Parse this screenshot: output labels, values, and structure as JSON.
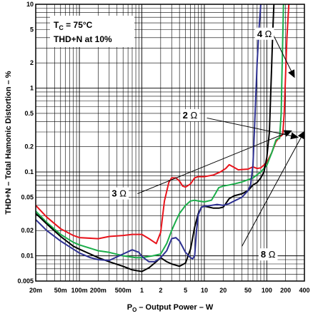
{
  "chart_data": {
    "type": "line",
    "xscale": "log",
    "yscale": "log",
    "xlim": [
      0.02,
      400
    ],
    "ylim": [
      0.005,
      10
    ],
    "grid": true,
    "xlabel": "P",
    "xlabel_sub": "O",
    "xlabel_rest": " – Output Power – W",
    "ylabel": "THD+N – Total Hamonic Distortion – %",
    "annotation_lines": [
      {
        "main": "T",
        "sub": "C",
        "rest": " = 75°C"
      },
      {
        "main": "THD+N at 10%",
        "sub": "",
        "rest": ""
      }
    ],
    "xticks": [
      {
        "v": 0.02,
        "label": "20m"
      },
      {
        "v": 0.05,
        "label": "50m"
      },
      {
        "v": 0.1,
        "label": "100m"
      },
      {
        "v": 0.2,
        "label": "200m"
      },
      {
        "v": 0.5,
        "label": "500m"
      },
      {
        "v": 1,
        "label": "1"
      },
      {
        "v": 2,
        "label": "2"
      },
      {
        "v": 5,
        "label": "5"
      },
      {
        "v": 10,
        "label": "10"
      },
      {
        "v": 20,
        "label": "20"
      },
      {
        "v": 50,
        "label": "50"
      },
      {
        "v": 100,
        "label": "100"
      },
      {
        "v": 200,
        "label": "200"
      },
      {
        "v": 400,
        "label": "400"
      }
    ],
    "yticks": [
      {
        "v": 0.005,
        "label": "0.005"
      },
      {
        "v": 0.01,
        "label": "0.01"
      },
      {
        "v": 0.02,
        "label": "0.02"
      },
      {
        "v": 0.05,
        "label": "0.05"
      },
      {
        "v": 0.1,
        "label": "0.1"
      },
      {
        "v": 0.2,
        "label": "0.2"
      },
      {
        "v": 0.5,
        "label": "0.5"
      },
      {
        "v": 1,
        "label": "1"
      },
      {
        "v": 2,
        "label": "2"
      },
      {
        "v": 5,
        "label": "5"
      },
      {
        "v": 10,
        "label": "10"
      }
    ],
    "series": [
      {
        "name": "2 Ω",
        "color": "#e8141c",
        "points": [
          [
            0.02,
            0.04
          ],
          [
            0.03,
            0.029
          ],
          [
            0.05,
            0.021
          ],
          [
            0.08,
            0.0175
          ],
          [
            0.1,
            0.0165
          ],
          [
            0.2,
            0.016
          ],
          [
            0.3,
            0.017
          ],
          [
            0.5,
            0.0175
          ],
          [
            0.7,
            0.018
          ],
          [
            1,
            0.018
          ],
          [
            1.3,
            0.016
          ],
          [
            1.7,
            0.014
          ],
          [
            2,
            0.019
          ],
          [
            2.3,
            0.045
          ],
          [
            2.7,
            0.075
          ],
          [
            3,
            0.085
          ],
          [
            3.5,
            0.085
          ],
          [
            4,
            0.078
          ],
          [
            4.5,
            0.068
          ],
          [
            5,
            0.066
          ],
          [
            6,
            0.072
          ],
          [
            7,
            0.085
          ],
          [
            8,
            0.088
          ],
          [
            10,
            0.088
          ],
          [
            14,
            0.092
          ],
          [
            18,
            0.1
          ],
          [
            22,
            0.11
          ],
          [
            25,
            0.122
          ],
          [
            30,
            0.113
          ],
          [
            35,
            0.106
          ],
          [
            40,
            0.107
          ],
          [
            50,
            0.108
          ],
          [
            60,
            0.115
          ],
          [
            70,
            0.11
          ],
          [
            80,
            0.112
          ],
          [
            100,
            0.13
          ],
          [
            120,
            0.17
          ],
          [
            140,
            0.23
          ],
          [
            160,
            0.26
          ],
          [
            180,
            0.28
          ],
          [
            190,
            0.5
          ],
          [
            200,
            1.5
          ],
          [
            210,
            4
          ],
          [
            225,
            10
          ]
        ]
      },
      {
        "name": "",
        "color": "#1bae4a",
        "points": [
          [
            0.02,
            0.034
          ],
          [
            0.03,
            0.025
          ],
          [
            0.05,
            0.018
          ],
          [
            0.08,
            0.0145
          ],
          [
            0.1,
            0.0135
          ],
          [
            0.2,
            0.0115
          ],
          [
            0.3,
            0.011
          ],
          [
            0.5,
            0.01
          ],
          [
            0.8,
            0.0095
          ],
          [
            1,
            0.0095
          ],
          [
            1.5,
            0.01
          ],
          [
            2,
            0.0105
          ],
          [
            2.5,
            0.014
          ],
          [
            3,
            0.02
          ],
          [
            3.5,
            0.026
          ],
          [
            4,
            0.032
          ],
          [
            5,
            0.04
          ],
          [
            6,
            0.045
          ],
          [
            7,
            0.046
          ],
          [
            8,
            0.045
          ],
          [
            10,
            0.044
          ],
          [
            13,
            0.046
          ],
          [
            15,
            0.055
          ],
          [
            17,
            0.065
          ],
          [
            20,
            0.068
          ],
          [
            25,
            0.07
          ],
          [
            30,
            0.072
          ],
          [
            40,
            0.076
          ],
          [
            60,
            0.085
          ],
          [
            80,
            0.1
          ],
          [
            100,
            0.12
          ],
          [
            120,
            0.17
          ],
          [
            140,
            0.24
          ],
          [
            150,
            0.25
          ],
          [
            160,
            0.25
          ],
          [
            170,
            0.5
          ],
          [
            175,
            1.5
          ],
          [
            180,
            4
          ],
          [
            185,
            10
          ]
        ]
      },
      {
        "name": "4 Ω",
        "color": "#000000",
        "points": [
          [
            0.02,
            0.032
          ],
          [
            0.03,
            0.024
          ],
          [
            0.05,
            0.017
          ],
          [
            0.08,
            0.013
          ],
          [
            0.1,
            0.012
          ],
          [
            0.2,
            0.0095
          ],
          [
            0.3,
            0.0085
          ],
          [
            0.5,
            0.0075
          ],
          [
            0.7,
            0.0068
          ],
          [
            1,
            0.0065
          ],
          [
            1.3,
            0.0072
          ],
          [
            1.7,
            0.0085
          ],
          [
            2,
            0.0095
          ],
          [
            2.5,
            0.0085
          ],
          [
            3,
            0.008
          ],
          [
            4,
            0.0075
          ],
          [
            5,
            0.0082
          ],
          [
            6,
            0.012
          ],
          [
            7,
            0.022
          ],
          [
            8,
            0.032
          ],
          [
            9,
            0.038
          ],
          [
            10,
            0.039
          ],
          [
            12,
            0.038
          ],
          [
            14,
            0.037
          ],
          [
            17,
            0.037
          ],
          [
            20,
            0.038
          ],
          [
            22,
            0.042
          ],
          [
            25,
            0.048
          ],
          [
            30,
            0.052
          ],
          [
            40,
            0.055
          ],
          [
            50,
            0.06
          ],
          [
            60,
            0.07
          ],
          [
            70,
            0.075
          ],
          [
            80,
            0.085
          ],
          [
            90,
            0.1
          ],
          [
            100,
            0.15
          ],
          [
            110,
            0.3
          ],
          [
            115,
            0.8
          ],
          [
            120,
            2
          ],
          [
            125,
            5
          ],
          [
            130,
            10
          ]
        ]
      },
      {
        "name": "",
        "color": "#2e3192",
        "points": [
          [
            0.02,
            0.027
          ],
          [
            0.03,
            0.02
          ],
          [
            0.05,
            0.015
          ],
          [
            0.08,
            0.012
          ],
          [
            0.1,
            0.0108
          ],
          [
            0.15,
            0.0095
          ],
          [
            0.2,
            0.009
          ],
          [
            0.3,
            0.0088
          ],
          [
            0.5,
            0.0105
          ],
          [
            0.7,
            0.0118
          ],
          [
            0.9,
            0.011
          ],
          [
            1,
            0.0098
          ],
          [
            1.3,
            0.0085
          ],
          [
            1.6,
            0.0085
          ],
          [
            2,
            0.0095
          ],
          [
            2.5,
            0.0115
          ],
          [
            3,
            0.016
          ],
          [
            3.5,
            0.0165
          ],
          [
            4,
            0.015
          ],
          [
            5,
            0.011
          ],
          [
            6,
            0.0095
          ],
          [
            6.5,
            0.0092
          ],
          [
            7,
            0.01
          ],
          [
            7.5,
            0.02
          ],
          [
            8,
            0.031
          ],
          [
            9,
            0.038
          ],
          [
            10,
            0.039
          ],
          [
            13,
            0.04
          ],
          [
            16,
            0.041
          ],
          [
            20,
            0.04
          ],
          [
            25,
            0.042
          ],
          [
            30,
            0.045
          ],
          [
            40,
            0.05
          ],
          [
            50,
            0.06
          ],
          [
            55,
            0.07
          ],
          [
            60,
            0.12
          ],
          [
            65,
            0.5
          ],
          [
            70,
            2
          ],
          [
            75,
            5
          ],
          [
            80,
            10
          ]
        ]
      }
    ],
    "curve_labels": [
      {
        "main": "4",
        "unit": " Ω",
        "x": 70,
        "y": 4.5
      },
      {
        "main": "2",
        "unit": " Ω",
        "x": 4.5,
        "y": 0.48
      },
      {
        "main": "3",
        "unit": " Ω",
        "x": 0.33,
        "y": 0.056
      },
      {
        "main": "8",
        "unit": " Ω",
        "x": 80,
        "y": 0.0105
      }
    ],
    "leaders": [
      {
        "from": [
          120,
          4.7
        ],
        "to": [
          280,
          1.32
        ]
      },
      {
        "from": [
          11,
          0.44
        ],
        "to": [
          325,
          0.258
        ]
      },
      {
        "from": [
          0.85,
          0.055
        ],
        "to": [
          255,
          0.312
        ]
      },
      {
        "from": [
          40,
          0.013
        ],
        "to": [
          405,
          0.311
        ]
      }
    ]
  }
}
